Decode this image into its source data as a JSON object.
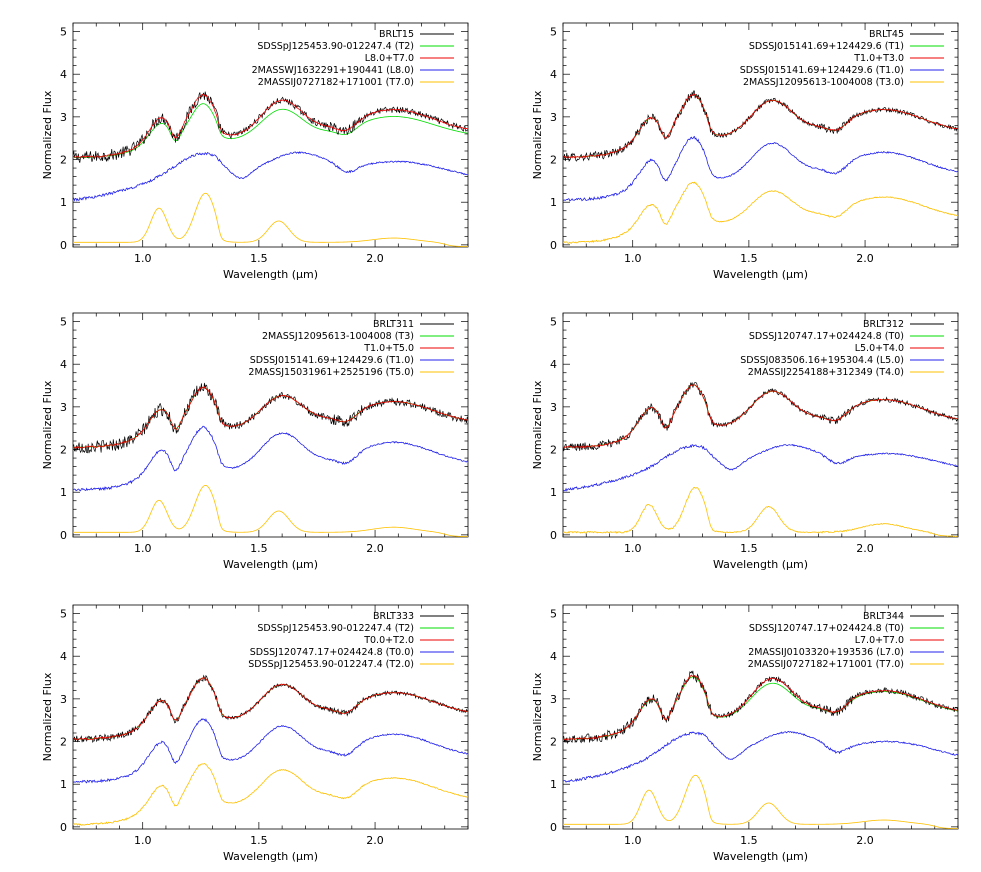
{
  "chart_data": [
    {
      "type": "line",
      "xlabel": "Wavelength (µm)",
      "ylabel": "Normalized Flux",
      "xlim": [
        0.7,
        2.4
      ],
      "ylim": [
        -0.05,
        5.2
      ],
      "xticks": [
        "1.0",
        "1.5",
        "2.0"
      ],
      "yticks": [
        "0",
        "1",
        "2",
        "3",
        "4",
        "5"
      ],
      "grid": false,
      "legend_position": "top-right",
      "series": [
        {
          "name": "BRLT15",
          "color": "#000000",
          "offset": 2,
          "shape": "L8T7",
          "noise": 0.14,
          "scale": 1.0
        },
        {
          "name": "SDSSpJ125453.90-012247.4 (T2)",
          "color": "#00dd00",
          "offset": 2,
          "shape": "T2",
          "noise": 0.0,
          "scale": 0.88
        },
        {
          "name": "L8.0+T7.0",
          "color": "#ee0000",
          "offset": 2,
          "shape": "L8T7",
          "noise": 0.02,
          "scale": 1.0
        },
        {
          "name": "2MASSWJ1632291+190441 (L8.0)",
          "color": "#2020ee",
          "offset": 1,
          "shape": "L8",
          "noise": 0.03,
          "scale": 1.0
        },
        {
          "name": "2MASSIJ0727182+171001 (T7.0)",
          "color": "#ffc000",
          "offset": 0,
          "shape": "T7",
          "noise": 0.0,
          "scale": 1.0
        }
      ]
    },
    {
      "type": "line",
      "xlabel": "Wavelength (µm)",
      "ylabel": "Normalized Flux",
      "xlim": [
        0.7,
        2.4
      ],
      "ylim": [
        -0.05,
        5.2
      ],
      "xticks": [
        "1.0",
        "1.5",
        "2.0"
      ],
      "yticks": [
        "0",
        "1",
        "2",
        "3",
        "4",
        "5"
      ],
      "grid": false,
      "legend_position": "top-right",
      "series": [
        {
          "name": "BRLT45",
          "color": "#000000",
          "offset": 2,
          "shape": "T1",
          "noise": 0.1,
          "scale": 1.0
        },
        {
          "name": "SDSSJ015141.69+124429.6 (T1)",
          "color": "#00dd00",
          "offset": 2,
          "shape": "T1",
          "noise": 0.0,
          "scale": 1.0
        },
        {
          "name": "T1.0+T3.0",
          "color": "#ee0000",
          "offset": 2,
          "shape": "T1",
          "noise": 0.02,
          "scale": 1.0
        },
        {
          "name": "SDSSJ015141.69+124429.6 (T1.0)",
          "color": "#2020ee",
          "offset": 1,
          "shape": "T1",
          "noise": 0.03,
          "scale": 1.0
        },
        {
          "name": "2MASSJ12095613-1004008 (T3.0)",
          "color": "#ffc000",
          "offset": 0,
          "shape": "T3",
          "noise": 0.02,
          "scale": 1.0
        }
      ]
    },
    {
      "type": "line",
      "xlabel": "Wavelength (µm)",
      "ylabel": "Normalized Flux",
      "xlim": [
        0.7,
        2.4
      ],
      "ylim": [
        -0.05,
        5.2
      ],
      "xticks": [
        "1.0",
        "1.5",
        "2.0"
      ],
      "yticks": [
        "0",
        "1",
        "2",
        "3",
        "4",
        "5"
      ],
      "grid": false,
      "legend_position": "top-right",
      "series": [
        {
          "name": "BRLT311",
          "color": "#000000",
          "offset": 2,
          "shape": "T3",
          "noise": 0.15,
          "scale": 1.0
        },
        {
          "name": "2MASSJ12095613-1004008 (T3)",
          "color": "#00dd00",
          "offset": 2,
          "shape": "T3",
          "noise": 0.0,
          "scale": 1.0
        },
        {
          "name": "T1.0+T5.0",
          "color": "#ee0000",
          "offset": 2,
          "shape": "T3",
          "noise": 0.02,
          "scale": 1.0
        },
        {
          "name": "SDSSJ015141.69+124429.6 (T1.0)",
          "color": "#2020ee",
          "offset": 1,
          "shape": "T1",
          "noise": 0.03,
          "scale": 1.0
        },
        {
          "name": "2MASSJ15031961+2525196 (T5.0)",
          "color": "#ffc000",
          "offset": 0,
          "shape": "T5",
          "noise": 0.0,
          "scale": 1.0
        }
      ]
    },
    {
      "type": "line",
      "xlabel": "Wavelength (µm)",
      "ylabel": "Normalized Flux",
      "xlim": [
        0.7,
        2.4
      ],
      "ylim": [
        -0.05,
        5.2
      ],
      "xticks": [
        "1.0",
        "1.5",
        "2.0"
      ],
      "yticks": [
        "0",
        "1",
        "2",
        "3",
        "4",
        "5"
      ],
      "grid": false,
      "legend_position": "top-right",
      "series": [
        {
          "name": "BRLT312",
          "color": "#000000",
          "offset": 2,
          "shape": "T0",
          "noise": 0.1,
          "scale": 1.0
        },
        {
          "name": "SDSSJ120747.17+024424.8 (T0)",
          "color": "#00dd00",
          "offset": 2,
          "shape": "T0",
          "noise": 0.0,
          "scale": 1.0
        },
        {
          "name": "L5.0+T4.0",
          "color": "#ee0000",
          "offset": 2,
          "shape": "T0",
          "noise": 0.02,
          "scale": 1.0
        },
        {
          "name": "SDSSJ083506.16+195304.4 (L5.0)",
          "color": "#2020ee",
          "offset": 1,
          "shape": "L5",
          "noise": 0.03,
          "scale": 1.0
        },
        {
          "name": "2MASSIJ2254188+312349 (T4.0)",
          "color": "#ffc000",
          "offset": 0,
          "shape": "T4",
          "noise": 0.02,
          "scale": 1.0
        }
      ]
    },
    {
      "type": "line",
      "xlabel": "Wavelength (µm)",
      "ylabel": "Normalized Flux",
      "xlim": [
        0.7,
        2.4
      ],
      "ylim": [
        -0.05,
        5.2
      ],
      "xticks": [
        "1.0",
        "1.5",
        "2.0"
      ],
      "yticks": [
        "0",
        "1",
        "2",
        "3",
        "4",
        "5"
      ],
      "grid": false,
      "legend_position": "top-right",
      "series": [
        {
          "name": "BRLT333",
          "color": "#000000",
          "offset": 2,
          "shape": "T2",
          "noise": 0.08,
          "scale": 1.0
        },
        {
          "name": "SDSSpJ125453.90-012247.4 (T2)",
          "color": "#00dd00",
          "offset": 2,
          "shape": "T2",
          "noise": 0.0,
          "scale": 1.0
        },
        {
          "name": "T0.0+T2.0",
          "color": "#ee0000",
          "offset": 2,
          "shape": "T2",
          "noise": 0.02,
          "scale": 1.0
        },
        {
          "name": "SDSSJ120747.17+024424.8 (T0.0)",
          "color": "#2020ee",
          "offset": 1,
          "shape": "T0",
          "noise": 0.03,
          "scale": 1.0
        },
        {
          "name": "SDSSpJ125453.90-012247.4 (T2.0)",
          "color": "#ffc000",
          "offset": 0,
          "shape": "T2",
          "noise": 0.02,
          "scale": 1.0
        }
      ]
    },
    {
      "type": "line",
      "xlabel": "Wavelength (µm)",
      "ylabel": "Normalized Flux",
      "xlim": [
        0.7,
        2.4
      ],
      "ylim": [
        -0.05,
        5.2
      ],
      "xticks": [
        "1.0",
        "1.5",
        "2.0"
      ],
      "yticks": [
        "0",
        "1",
        "2",
        "3",
        "4",
        "5"
      ],
      "grid": false,
      "legend_position": "top-right",
      "series": [
        {
          "name": "BRLT344",
          "color": "#000000",
          "offset": 2,
          "shape": "L7T7",
          "noise": 0.12,
          "scale": 1.0
        },
        {
          "name": "SDSSJ120747.17+024424.8 (T0)",
          "color": "#00dd00",
          "offset": 2,
          "shape": "T0",
          "noise": 0.0,
          "scale": 1.0
        },
        {
          "name": "L7.0+T7.0",
          "color": "#ee0000",
          "offset": 2,
          "shape": "L7T7",
          "noise": 0.02,
          "scale": 1.0
        },
        {
          "name": "2MASSIJ0103320+193536 (L7.0)",
          "color": "#2020ee",
          "offset": 1,
          "shape": "L7",
          "noise": 0.03,
          "scale": 1.0
        },
        {
          "name": "2MASSIJ0727182+171001 (T7.0)",
          "color": "#ffc000",
          "offset": 0,
          "shape": "T7",
          "noise": 0.0,
          "scale": 1.0
        }
      ]
    }
  ]
}
